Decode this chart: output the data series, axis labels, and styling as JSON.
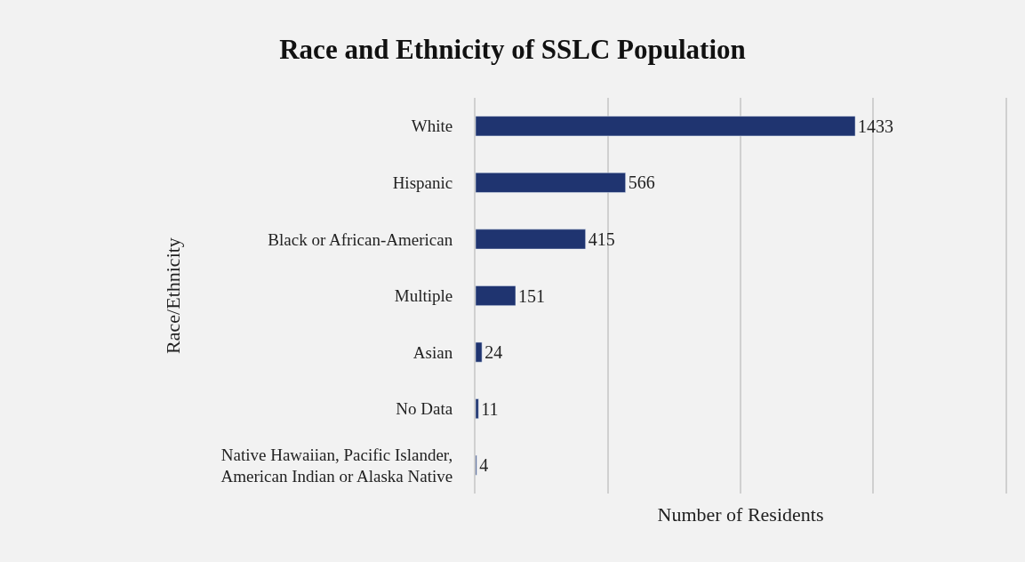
{
  "chart_data": {
    "type": "bar",
    "orientation": "horizontal",
    "title": "Race and Ethnicity of SSLC Population",
    "xlabel": "Number of Residents",
    "ylabel": "Race/Ethnicity",
    "categories": [
      "White",
      "Hispanic",
      "Black or African-American",
      "Multiple",
      "Asian",
      "No Data",
      "Native Hawaiian, Pacific Islander, American Indian or Alaska Native"
    ],
    "values": [
      1433,
      566,
      415,
      151,
      24,
      11,
      4
    ],
    "color": "#1f3470",
    "data_labels": true,
    "xlim": [
      0,
      2000
    ],
    "xticks": [
      {
        "value": 0,
        "label": null
      },
      {
        "value": 500,
        "label": null
      },
      {
        "value": 1000,
        "label": null
      },
      {
        "value": 1500,
        "label": null
      },
      {
        "value": 2000,
        "label": null
      }
    ],
    "grid": "x",
    "legend": false
  }
}
